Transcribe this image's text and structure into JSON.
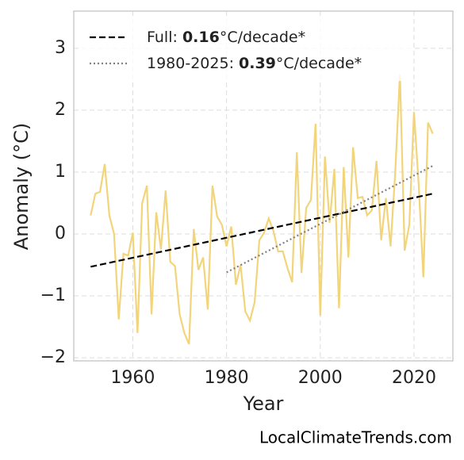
{
  "chart_data": {
    "type": "line",
    "xlabel": "Year",
    "ylabel": "Anomaly (°C)",
    "source": "LocalClimateTrends.com",
    "xlim": [
      1947.4,
      2028.3
    ],
    "ylim": [
      -2.05,
      3.6
    ],
    "xticks": [
      1960,
      1980,
      2000,
      2020
    ],
    "yticks": [
      {
        "value": -2,
        "label": "−2"
      },
      {
        "value": -1,
        "label": "−1"
      },
      0,
      1,
      2,
      3
    ],
    "grid": true,
    "legend": "upper left",
    "series": [
      {
        "color": "#f2d47a",
        "style": "solid",
        "x": [
          1951,
          1952,
          1953,
          1954,
          1955,
          1956,
          1957,
          1958,
          1959,
          1960,
          1961,
          1962,
          1963,
          1964,
          1965,
          1966,
          1967,
          1968,
          1969,
          1970,
          1971,
          1972,
          1973,
          1974,
          1975,
          1976,
          1977,
          1978,
          1979,
          1980,
          1981,
          1982,
          1983,
          1984,
          1985,
          1986,
          1987,
          1988,
          1989,
          1990,
          1991,
          1992,
          1993,
          1994,
          1995,
          1996,
          1997,
          1998,
          1999,
          2000,
          2001,
          2002,
          2003,
          2004,
          2005,
          2006,
          2007,
          2008,
          2009,
          2010,
          2011,
          2012,
          2013,
          2014,
          2015,
          2016,
          2017,
          2018,
          2019,
          2020,
          2021,
          2022,
          2023,
          2024
        ],
        "values": [
          0.3,
          0.65,
          0.68,
          1.13,
          0.3,
          0.0,
          -1.38,
          -0.32,
          -0.35,
          0.02,
          -1.6,
          0.5,
          0.78,
          -1.3,
          0.35,
          -0.25,
          0.7,
          -0.45,
          -0.52,
          -1.3,
          -1.6,
          -1.78,
          0.08,
          -0.58,
          -0.38,
          -1.22,
          0.78,
          0.28,
          0.15,
          -0.2,
          0.12,
          -0.82,
          -0.5,
          -1.25,
          -1.4,
          -1.1,
          -0.1,
          0.02,
          0.25,
          0.05,
          -0.28,
          -0.28,
          -0.55,
          -0.78,
          1.32,
          -0.63,
          0.42,
          0.55,
          1.78,
          -1.32,
          1.25,
          0.18,
          1.05,
          -1.2,
          1.08,
          -0.38,
          1.4,
          0.58,
          0.6,
          0.3,
          0.38,
          1.18,
          -0.1,
          0.58,
          -0.2,
          1.0,
          2.58,
          -0.27,
          0.15,
          1.97,
          0.8,
          -0.7,
          1.8,
          1.62
        ]
      },
      {
        "name": "Full: 0.16°C/decade*",
        "bold": "0.16",
        "color": "#000000",
        "style": "dashed",
        "x": [
          1951,
          2024
        ],
        "values": [
          -0.53,
          0.65
        ]
      },
      {
        "name": "1980-2025: 0.39°C/decade*",
        "bold": "0.39",
        "color": "#808080",
        "style": "dotted",
        "x": [
          1980,
          2024
        ],
        "values": [
          -0.62,
          1.1
        ]
      }
    ]
  }
}
